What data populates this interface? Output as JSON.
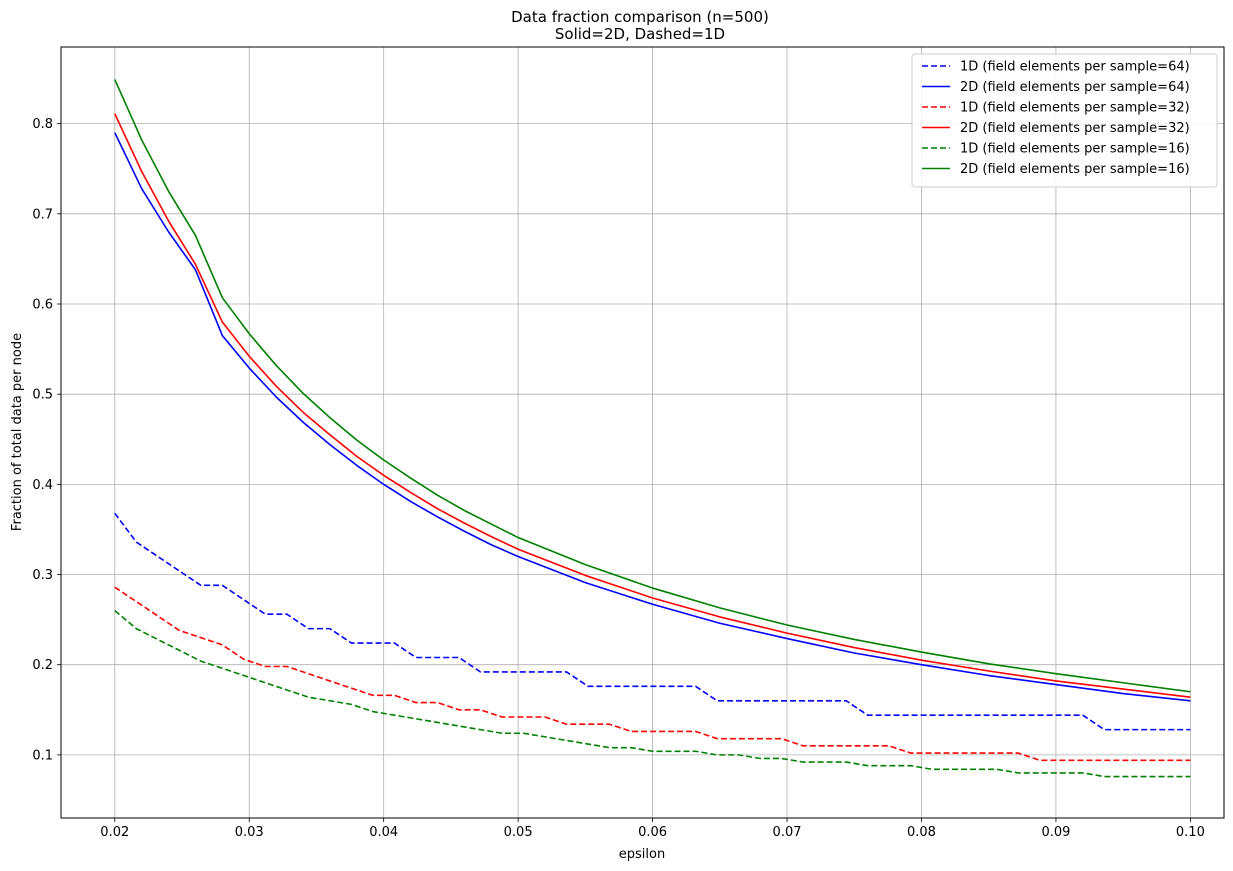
{
  "chart_data": {
    "type": "line",
    "title": "Data fraction comparison (n=500)",
    "subtitle": "Solid=2D, Dashed=1D",
    "xlabel": "epsilon",
    "ylabel": "Fraction of total data per node",
    "xlim": [
      0.016,
      0.1025
    ],
    "ylim": [
      0.03,
      0.885
    ],
    "xticks": [
      0.02,
      0.03,
      0.04,
      0.05,
      0.06,
      0.07,
      0.08,
      0.09,
      0.1
    ],
    "xtick_labels": [
      "0.02",
      "0.03",
      "0.04",
      "0.05",
      "0.06",
      "0.07",
      "0.08",
      "0.09",
      "0.10"
    ],
    "yticks": [
      0.1,
      0.2,
      0.3,
      0.4,
      0.5,
      0.6,
      0.7,
      0.8
    ],
    "ytick_labels": [
      "0.1",
      "0.2",
      "0.3",
      "0.4",
      "0.5",
      "0.6",
      "0.7",
      "0.8"
    ],
    "grid": true,
    "legend_position": "upper right",
    "series": [
      {
        "name": "1D (field elements per sample=64)",
        "color": "#0000ff",
        "dashed": true,
        "points": [
          [
            0.02,
            0.368
          ],
          [
            0.0216,
            0.336
          ],
          [
            0.0232,
            0.32
          ],
          [
            0.0248,
            0.304
          ],
          [
            0.0264,
            0.288
          ],
          [
            0.028,
            0.288
          ],
          [
            0.0296,
            0.272
          ],
          [
            0.0312,
            0.256
          ],
          [
            0.0328,
            0.256
          ],
          [
            0.0344,
            0.24
          ],
          [
            0.036,
            0.24
          ],
          [
            0.0376,
            0.224
          ],
          [
            0.0392,
            0.224
          ],
          [
            0.0408,
            0.224
          ],
          [
            0.0424,
            0.208
          ],
          [
            0.044,
            0.208
          ],
          [
            0.0456,
            0.208
          ],
          [
            0.0472,
            0.192
          ],
          [
            0.0488,
            0.192
          ],
          [
            0.0504,
            0.192
          ],
          [
            0.052,
            0.192
          ],
          [
            0.0536,
            0.192
          ],
          [
            0.0552,
            0.176
          ],
          [
            0.0568,
            0.176
          ],
          [
            0.0584,
            0.176
          ],
          [
            0.06,
            0.176
          ],
          [
            0.0616,
            0.176
          ],
          [
            0.0632,
            0.176
          ],
          [
            0.0648,
            0.16
          ],
          [
            0.0664,
            0.16
          ],
          [
            0.068,
            0.16
          ],
          [
            0.0696,
            0.16
          ],
          [
            0.0712,
            0.16
          ],
          [
            0.0728,
            0.16
          ],
          [
            0.0744,
            0.16
          ],
          [
            0.076,
            0.144
          ],
          [
            0.0776,
            0.144
          ],
          [
            0.0792,
            0.144
          ],
          [
            0.0808,
            0.144
          ],
          [
            0.0824,
            0.144
          ],
          [
            0.084,
            0.144
          ],
          [
            0.0856,
            0.144
          ],
          [
            0.0872,
            0.144
          ],
          [
            0.0888,
            0.144
          ],
          [
            0.0904,
            0.144
          ],
          [
            0.092,
            0.144
          ],
          [
            0.0936,
            0.128
          ],
          [
            0.0952,
            0.128
          ],
          [
            0.0968,
            0.128
          ],
          [
            0.0984,
            0.128
          ],
          [
            0.1,
            0.128
          ]
        ]
      },
      {
        "name": "2D (field elements per sample=64)",
        "color": "#0000ff",
        "dashed": false,
        "points": [
          [
            0.02,
            0.79
          ],
          [
            0.022,
            0.728
          ],
          [
            0.024,
            0.68
          ],
          [
            0.026,
            0.638
          ],
          [
            0.028,
            0.565
          ],
          [
            0.03,
            0.529
          ],
          [
            0.032,
            0.497
          ],
          [
            0.034,
            0.469
          ],
          [
            0.036,
            0.444
          ],
          [
            0.038,
            0.421
          ],
          [
            0.04,
            0.4
          ],
          [
            0.042,
            0.381
          ],
          [
            0.044,
            0.364
          ],
          [
            0.046,
            0.348
          ],
          [
            0.048,
            0.333
          ],
          [
            0.05,
            0.32
          ],
          [
            0.055,
            0.291
          ],
          [
            0.06,
            0.267
          ],
          [
            0.065,
            0.246
          ],
          [
            0.07,
            0.229
          ],
          [
            0.075,
            0.213
          ],
          [
            0.08,
            0.2
          ],
          [
            0.085,
            0.188
          ],
          [
            0.09,
            0.178
          ],
          [
            0.095,
            0.168
          ],
          [
            0.1,
            0.16
          ]
        ]
      },
      {
        "name": "1D (field elements per sample=32)",
        "color": "#ff0000",
        "dashed": true,
        "points": [
          [
            0.02,
            0.286
          ],
          [
            0.0216,
            0.27
          ],
          [
            0.0232,
            0.254
          ],
          [
            0.0248,
            0.238
          ],
          [
            0.0264,
            0.23
          ],
          [
            0.028,
            0.222
          ],
          [
            0.0296,
            0.206
          ],
          [
            0.0312,
            0.198
          ],
          [
            0.0328,
            0.198
          ],
          [
            0.0344,
            0.19
          ],
          [
            0.036,
            0.182
          ],
          [
            0.0376,
            0.174
          ],
          [
            0.0392,
            0.166
          ],
          [
            0.0408,
            0.166
          ],
          [
            0.0424,
            0.158
          ],
          [
            0.044,
            0.158
          ],
          [
            0.0456,
            0.15
          ],
          [
            0.0472,
            0.15
          ],
          [
            0.0488,
            0.142
          ],
          [
            0.0504,
            0.142
          ],
          [
            0.052,
            0.142
          ],
          [
            0.0536,
            0.134
          ],
          [
            0.0552,
            0.134
          ],
          [
            0.0568,
            0.134
          ],
          [
            0.0584,
            0.126
          ],
          [
            0.06,
            0.126
          ],
          [
            0.0616,
            0.126
          ],
          [
            0.0632,
            0.126
          ],
          [
            0.0648,
            0.118
          ],
          [
            0.0664,
            0.118
          ],
          [
            0.068,
            0.118
          ],
          [
            0.0696,
            0.118
          ],
          [
            0.0712,
            0.11
          ],
          [
            0.0728,
            0.11
          ],
          [
            0.0744,
            0.11
          ],
          [
            0.076,
            0.11
          ],
          [
            0.0776,
            0.11
          ],
          [
            0.0792,
            0.102
          ],
          [
            0.0808,
            0.102
          ],
          [
            0.0824,
            0.102
          ],
          [
            0.084,
            0.102
          ],
          [
            0.0856,
            0.102
          ],
          [
            0.0872,
            0.102
          ],
          [
            0.0888,
            0.094
          ],
          [
            0.0904,
            0.094
          ],
          [
            0.092,
            0.094
          ],
          [
            0.0936,
            0.094
          ],
          [
            0.0952,
            0.094
          ],
          [
            0.0968,
            0.094
          ],
          [
            0.0984,
            0.094
          ],
          [
            0.1,
            0.094
          ]
        ]
      },
      {
        "name": "2D (field elements per sample=32)",
        "color": "#ff0000",
        "dashed": false,
        "points": [
          [
            0.02,
            0.811
          ],
          [
            0.022,
            0.747
          ],
          [
            0.024,
            0.692
          ],
          [
            0.026,
            0.644
          ],
          [
            0.028,
            0.58
          ],
          [
            0.03,
            0.542
          ],
          [
            0.032,
            0.509
          ],
          [
            0.034,
            0.48
          ],
          [
            0.036,
            0.455
          ],
          [
            0.038,
            0.431
          ],
          [
            0.04,
            0.41
          ],
          [
            0.042,
            0.391
          ],
          [
            0.044,
            0.373
          ],
          [
            0.046,
            0.357
          ],
          [
            0.048,
            0.342
          ],
          [
            0.05,
            0.328
          ],
          [
            0.055,
            0.299
          ],
          [
            0.06,
            0.274
          ],
          [
            0.065,
            0.253
          ],
          [
            0.07,
            0.235
          ],
          [
            0.075,
            0.219
          ],
          [
            0.08,
            0.205
          ],
          [
            0.085,
            0.193
          ],
          [
            0.09,
            0.182
          ],
          [
            0.095,
            0.173
          ],
          [
            0.1,
            0.164
          ]
        ]
      },
      {
        "name": "1D (field elements per sample=16)",
        "color": "#008000",
        "dashed": true,
        "points": [
          [
            0.02,
            0.26
          ],
          [
            0.0216,
            0.24
          ],
          [
            0.0232,
            0.228
          ],
          [
            0.0248,
            0.216
          ],
          [
            0.0264,
            0.204
          ],
          [
            0.028,
            0.196
          ],
          [
            0.0296,
            0.188
          ],
          [
            0.0312,
            0.18
          ],
          [
            0.0328,
            0.172
          ],
          [
            0.0344,
            0.164
          ],
          [
            0.036,
            0.16
          ],
          [
            0.0376,
            0.156
          ],
          [
            0.0392,
            0.148
          ],
          [
            0.0408,
            0.144
          ],
          [
            0.0424,
            0.14
          ],
          [
            0.044,
            0.136
          ],
          [
            0.0456,
            0.132
          ],
          [
            0.0472,
            0.128
          ],
          [
            0.0488,
            0.124
          ],
          [
            0.0504,
            0.124
          ],
          [
            0.052,
            0.12
          ],
          [
            0.0536,
            0.116
          ],
          [
            0.0552,
            0.112
          ],
          [
            0.0568,
            0.108
          ],
          [
            0.0584,
            0.108
          ],
          [
            0.06,
            0.104
          ],
          [
            0.0616,
            0.104
          ],
          [
            0.0632,
            0.104
          ],
          [
            0.0648,
            0.1
          ],
          [
            0.0664,
            0.1
          ],
          [
            0.068,
            0.096
          ],
          [
            0.0696,
            0.096
          ],
          [
            0.0712,
            0.092
          ],
          [
            0.0728,
            0.092
          ],
          [
            0.0744,
            0.092
          ],
          [
            0.076,
            0.088
          ],
          [
            0.0776,
            0.088
          ],
          [
            0.0792,
            0.088
          ],
          [
            0.0808,
            0.084
          ],
          [
            0.0824,
            0.084
          ],
          [
            0.084,
            0.084
          ],
          [
            0.0856,
            0.084
          ],
          [
            0.0872,
            0.08
          ],
          [
            0.0888,
            0.08
          ],
          [
            0.0904,
            0.08
          ],
          [
            0.092,
            0.08
          ],
          [
            0.0936,
            0.076
          ],
          [
            0.0952,
            0.076
          ],
          [
            0.0968,
            0.076
          ],
          [
            0.0984,
            0.076
          ],
          [
            0.1,
            0.076
          ]
        ]
      },
      {
        "name": "2D (field elements per sample=16)",
        "color": "#008000",
        "dashed": false,
        "points": [
          [
            0.02,
            0.849
          ],
          [
            0.022,
            0.782
          ],
          [
            0.024,
            0.725
          ],
          [
            0.026,
            0.676
          ],
          [
            0.028,
            0.607
          ],
          [
            0.03,
            0.567
          ],
          [
            0.032,
            0.532
          ],
          [
            0.034,
            0.501
          ],
          [
            0.036,
            0.474
          ],
          [
            0.038,
            0.449
          ],
          [
            0.04,
            0.427
          ],
          [
            0.042,
            0.407
          ],
          [
            0.044,
            0.388
          ],
          [
            0.046,
            0.371
          ],
          [
            0.048,
            0.356
          ],
          [
            0.05,
            0.341
          ],
          [
            0.055,
            0.311
          ],
          [
            0.06,
            0.285
          ],
          [
            0.065,
            0.263
          ],
          [
            0.07,
            0.244
          ],
          [
            0.075,
            0.228
          ],
          [
            0.08,
            0.214
          ],
          [
            0.085,
            0.201
          ],
          [
            0.09,
            0.19
          ],
          [
            0.095,
            0.18
          ],
          [
            0.1,
            0.17
          ]
        ]
      }
    ]
  }
}
